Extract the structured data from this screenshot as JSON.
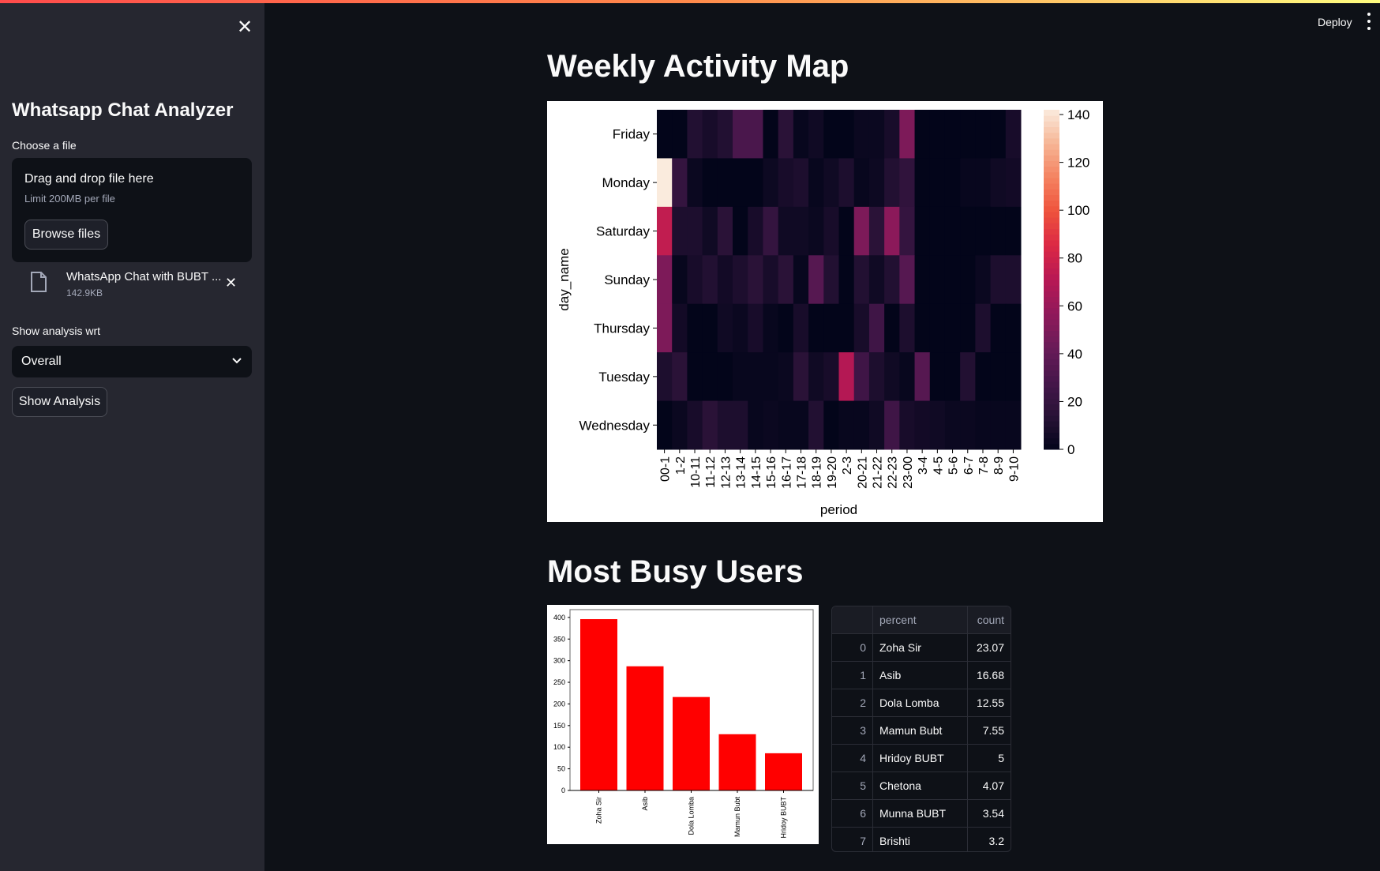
{
  "app": {
    "deploy_label": "Deploy",
    "menu_icon": "kebab-menu-icon"
  },
  "sidebar": {
    "title": "Whatsapp Chat Analyzer",
    "file_label": "Choose a file",
    "dropzone_title": "Drag and drop file here",
    "dropzone_limit": "Limit 200MB per file",
    "browse_label": "Browse files",
    "file_name": "WhatsApp Chat with BUBT ...",
    "file_size": "142.9KB",
    "analysis_label": "Show analysis wrt",
    "analysis_value": "Overall",
    "show_button": "Show Analysis"
  },
  "main": {
    "heatmap_title": "Weekly Activity Map",
    "busy_title": "Most Busy Users"
  },
  "table": {
    "headers": [
      "",
      "percent",
      "count"
    ],
    "rows": [
      [
        "0",
        "Zoha Sir",
        "23.07"
      ],
      [
        "1",
        "Asib",
        "16.68"
      ],
      [
        "2",
        "Dola Lomba",
        "12.55"
      ],
      [
        "3",
        "Mamun Bubt",
        "7.55"
      ],
      [
        "4",
        "Hridoy BUBT",
        "5"
      ],
      [
        "5",
        "Chetona",
        "4.07"
      ],
      [
        "6",
        "Munna BUBT",
        "3.54"
      ],
      [
        "7",
        "Brishti",
        "3.2"
      ]
    ]
  },
  "chart_data": [
    {
      "type": "heatmap",
      "xlabel": "period",
      "ylabel": "day_name",
      "x": [
        "00-1",
        "1-2",
        "10-11",
        "11-12",
        "12-13",
        "13-14",
        "14-15",
        "15-16",
        "16-17",
        "17-18",
        "18-19",
        "19-20",
        "2-3",
        "20-21",
        "21-22",
        "22-23",
        "23-00",
        "3-4",
        "4-5",
        "5-6",
        "6-7",
        "7-8",
        "8-9",
        "9-10"
      ],
      "y": [
        "Friday",
        "Monday",
        "Saturday",
        "Sunday",
        "Thursday",
        "Tuesday",
        "Wednesday"
      ],
      "values": [
        [
          0,
          0,
          12,
          8,
          12,
          30,
          30,
          0,
          15,
          2,
          5,
          0,
          0,
          3,
          3,
          8,
          50,
          0,
          0,
          0,
          0,
          0,
          0,
          8
        ],
        [
          142,
          20,
          3,
          0,
          0,
          0,
          0,
          4,
          8,
          10,
          2,
          5,
          10,
          2,
          4,
          12,
          18,
          0,
          0,
          0,
          2,
          2,
          5,
          6
        ],
        [
          75,
          10,
          10,
          5,
          15,
          0,
          8,
          20,
          5,
          5,
          3,
          8,
          0,
          50,
          15,
          55,
          20,
          0,
          0,
          0,
          0,
          0,
          0,
          0
        ],
        [
          50,
          2,
          8,
          12,
          6,
          10,
          15,
          8,
          15,
          2,
          35,
          12,
          0,
          12,
          5,
          12,
          35,
          0,
          0,
          0,
          0,
          3,
          10,
          10
        ],
        [
          50,
          6,
          0,
          0,
          5,
          3,
          8,
          2,
          0,
          8,
          0,
          0,
          0,
          8,
          25,
          0,
          10,
          0,
          0,
          0,
          0,
          10,
          0,
          0
        ],
        [
          10,
          15,
          0,
          0,
          0,
          2,
          2,
          2,
          3,
          15,
          5,
          8,
          70,
          25,
          10,
          5,
          2,
          35,
          0,
          0,
          12,
          0,
          0,
          0
        ],
        [
          0,
          3,
          8,
          15,
          10,
          10,
          2,
          3,
          2,
          2,
          12,
          0,
          2,
          2,
          5,
          25,
          8,
          6,
          5,
          3,
          3,
          2,
          2,
          2
        ]
      ],
      "colorbar": {
        "min": 0,
        "max": 142,
        "ticks": [
          0,
          20,
          40,
          60,
          80,
          100,
          120,
          140
        ]
      }
    },
    {
      "type": "bar",
      "categories": [
        "Zoha Sir",
        "Asib",
        "Dola Lomba",
        "Mamun Bubt",
        "Hridoy BUBT"
      ],
      "values": [
        396,
        287,
        216,
        130,
        86
      ],
      "color": "#ff0000",
      "ylim": [
        0,
        418
      ],
      "yticks": [
        0,
        50,
        100,
        150,
        200,
        250,
        300,
        350,
        400
      ]
    }
  ]
}
